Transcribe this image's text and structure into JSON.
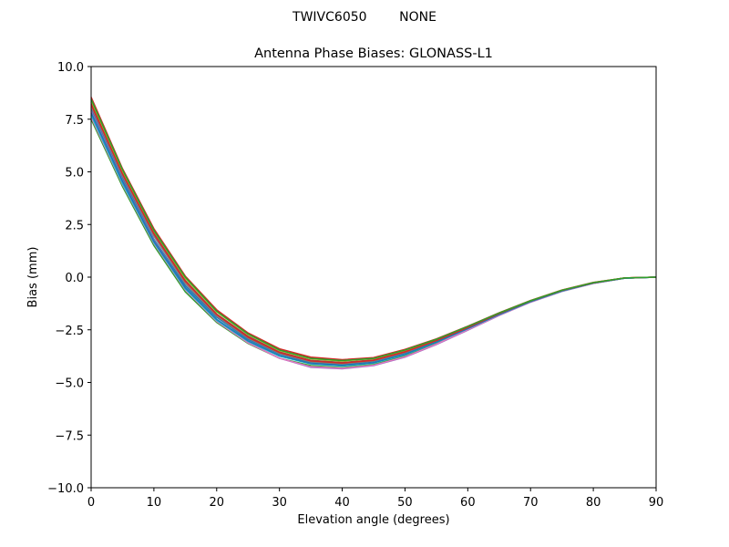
{
  "chart_data": {
    "type": "line",
    "suptitle": "TWIVC6050        NONE",
    "title": "Antenna Phase Biases: GLONASS-L1",
    "xlabel": "Elevation angle (degrees)",
    "ylabel": "Bias (mm)",
    "xlim": [
      0,
      90
    ],
    "ylim": [
      -10,
      10
    ],
    "xticks": [
      0,
      10,
      20,
      30,
      40,
      50,
      60,
      70,
      80,
      90
    ],
    "xtick_labels": [
      "0",
      "10",
      "20",
      "30",
      "40",
      "50",
      "60",
      "70",
      "80",
      "90"
    ],
    "yticks": [
      10,
      7.5,
      5,
      2.5,
      0,
      -2.5,
      -5,
      -7.5,
      -10
    ],
    "ytick_labels": [
      "10.0",
      "7.5",
      "5.0",
      "2.5",
      "0.0",
      "−2.5",
      "−5.0",
      "−7.5",
      "−10.0"
    ],
    "grid": false,
    "legend": "none",
    "x": [
      0,
      5,
      10,
      15,
      20,
      25,
      30,
      35,
      40,
      45,
      50,
      55,
      60,
      65,
      70,
      75,
      80,
      85,
      90
    ],
    "series": [
      {
        "color": "#1f77b4",
        "values": [
          8.0,
          4.7,
          1.8,
          -0.4,
          -1.9,
          -2.95,
          -3.65,
          -4.05,
          -4.15,
          -4.0,
          -3.6,
          -3.05,
          -2.4,
          -1.75,
          -1.15,
          -0.65,
          -0.28,
          -0.05,
          0.0
        ]
      },
      {
        "color": "#ff7f0e",
        "values": [
          8.5,
          5.1,
          2.25,
          0.0,
          -1.6,
          -2.7,
          -3.45,
          -3.85,
          -3.95,
          -3.85,
          -3.45,
          -2.95,
          -2.35,
          -1.7,
          -1.12,
          -0.62,
          -0.26,
          -0.04,
          0.0
        ]
      },
      {
        "color": "#2ca02c",
        "values": [
          7.5,
          4.3,
          1.5,
          -0.7,
          -2.15,
          -3.15,
          -3.85,
          -4.2,
          -4.3,
          -4.15,
          -3.75,
          -3.15,
          -2.48,
          -1.8,
          -1.18,
          -0.67,
          -0.29,
          -0.05,
          0.0
        ]
      },
      {
        "color": "#d62728",
        "values": [
          8.55,
          5.15,
          2.3,
          0.05,
          -1.55,
          -2.65,
          -3.4,
          -3.8,
          -3.92,
          -3.82,
          -3.43,
          -2.93,
          -2.33,
          -1.69,
          -1.11,
          -0.61,
          -0.25,
          -0.04,
          0.0
        ]
      },
      {
        "color": "#9467bd",
        "values": [
          7.9,
          4.6,
          1.75,
          -0.5,
          -2.05,
          -3.1,
          -3.85,
          -4.28,
          -4.35,
          -4.2,
          -3.8,
          -3.2,
          -2.52,
          -1.82,
          -1.19,
          -0.68,
          -0.3,
          -0.05,
          0.0
        ]
      },
      {
        "color": "#8c564b",
        "values": [
          8.3,
          4.95,
          2.1,
          -0.15,
          -1.75,
          -2.8,
          -3.55,
          -3.95,
          -4.05,
          -3.93,
          -3.52,
          -3.0,
          -2.38,
          -1.73,
          -1.13,
          -0.63,
          -0.27,
          -0.04,
          0.0
        ]
      },
      {
        "color": "#e377c2",
        "values": [
          7.6,
          4.4,
          1.6,
          -0.6,
          -2.1,
          -3.12,
          -3.85,
          -4.25,
          -4.33,
          -4.18,
          -3.78,
          -3.18,
          -2.5,
          -1.81,
          -1.18,
          -0.67,
          -0.29,
          -0.05,
          0.0
        ]
      },
      {
        "color": "#7f7f7f",
        "values": [
          8.1,
          4.8,
          1.95,
          -0.3,
          -1.85,
          -2.9,
          -3.62,
          -4.02,
          -4.12,
          -3.98,
          -3.58,
          -3.03,
          -2.4,
          -1.74,
          -1.14,
          -0.64,
          -0.27,
          -0.05,
          0.0
        ]
      },
      {
        "color": "#bcbd22",
        "values": [
          8.4,
          5.05,
          2.2,
          -0.05,
          -1.65,
          -2.72,
          -3.48,
          -3.88,
          -3.98,
          -3.87,
          -3.47,
          -2.96,
          -2.35,
          -1.71,
          -1.12,
          -0.62,
          -0.26,
          -0.04,
          0.0
        ]
      },
      {
        "color": "#17becf",
        "values": [
          7.7,
          4.45,
          1.65,
          -0.55,
          -2.05,
          -3.05,
          -3.75,
          -4.12,
          -4.22,
          -4.08,
          -3.68,
          -3.1,
          -2.45,
          -1.78,
          -1.16,
          -0.66,
          -0.28,
          -0.05,
          0.0
        ]
      },
      {
        "color": "#1f77b4",
        "values": [
          7.8,
          4.55,
          1.7,
          -0.5,
          -2.0,
          -3.02,
          -3.72,
          -4.1,
          -4.2,
          -4.06,
          -3.66,
          -3.08,
          -2.44,
          -1.77,
          -1.16,
          -0.65,
          -0.28,
          -0.05,
          0.0
        ]
      },
      {
        "color": "#d62728",
        "values": [
          8.2,
          4.9,
          2.05,
          -0.2,
          -1.78,
          -2.85,
          -3.58,
          -3.98,
          -4.08,
          -3.95,
          -3.55,
          -3.01,
          -2.39,
          -1.73,
          -1.13,
          -0.63,
          -0.27,
          -0.04,
          0.0
        ]
      },
      {
        "color": "#2ca02c",
        "values": [
          8.45,
          5.1,
          2.22,
          0.0,
          -1.62,
          -2.7,
          -3.46,
          -3.86,
          -3.96,
          -3.86,
          -3.46,
          -2.95,
          -2.34,
          -1.7,
          -1.12,
          -0.62,
          -0.26,
          -0.04,
          0.0
        ]
      }
    ]
  }
}
